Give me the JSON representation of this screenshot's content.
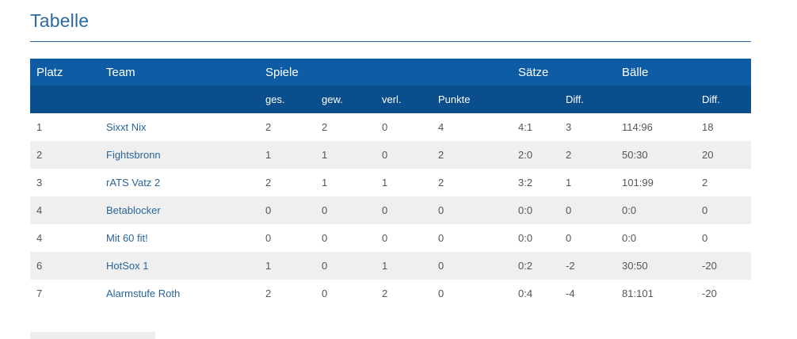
{
  "title": "Tabelle",
  "table": {
    "header_top": {
      "platz": "Platz",
      "team": "Team",
      "spiele": "Spiele",
      "saetze": "Sätze",
      "baelle": "Bälle"
    },
    "header_sub": {
      "ges": "ges.",
      "gew": "gew.",
      "verl": "verl.",
      "punkte": "Punkte",
      "saetze_diff": "Diff.",
      "baelle_diff": "Diff."
    },
    "rows": [
      {
        "platz": "1",
        "team": "Sixxt Nix",
        "ges": "2",
        "gew": "2",
        "verl": "0",
        "punkte": "4",
        "saetze": "4:1",
        "saetze_diff": "3",
        "baelle": "114:96",
        "baelle_diff": "18"
      },
      {
        "platz": "2",
        "team": "Fightsbronn",
        "ges": "1",
        "gew": "1",
        "verl": "0",
        "punkte": "2",
        "saetze": "2:0",
        "saetze_diff": "2",
        "baelle": "50:30",
        "baelle_diff": "20"
      },
      {
        "platz": "3",
        "team": "rATS Vatz 2",
        "ges": "2",
        "gew": "1",
        "verl": "1",
        "punkte": "2",
        "saetze": "3:2",
        "saetze_diff": "1",
        "baelle": "101:99",
        "baelle_diff": "2"
      },
      {
        "platz": "4",
        "team": "Betablocker",
        "ges": "0",
        "gew": "0",
        "verl": "0",
        "punkte": "0",
        "saetze": "0:0",
        "saetze_diff": "0",
        "baelle": "0:0",
        "baelle_diff": "0"
      },
      {
        "platz": "4",
        "team": "Mit 60 fit!",
        "ges": "0",
        "gew": "0",
        "verl": "0",
        "punkte": "0",
        "saetze": "0:0",
        "saetze_diff": "0",
        "baelle": "0:0",
        "baelle_diff": "0"
      },
      {
        "platz": "6",
        "team": "HotSox 1",
        "ges": "1",
        "gew": "0",
        "verl": "1",
        "punkte": "0",
        "saetze": "0:2",
        "saetze_diff": "-2",
        "baelle": "30:50",
        "baelle_diff": "-20"
      },
      {
        "platz": "7",
        "team": "Alarmstufe Roth",
        "ges": "2",
        "gew": "0",
        "verl": "2",
        "punkte": "0",
        "saetze": "0:4",
        "saetze_diff": "-4",
        "baelle": "81:101",
        "baelle_diff": "-20"
      }
    ]
  },
  "colors": {
    "accent": "#2c6a9e",
    "header_top_bg": "#0e5ca3",
    "header_sub_bg": "#0a4e8c",
    "stripe_bg": "#efefef",
    "team_link": "#2a6597"
  }
}
